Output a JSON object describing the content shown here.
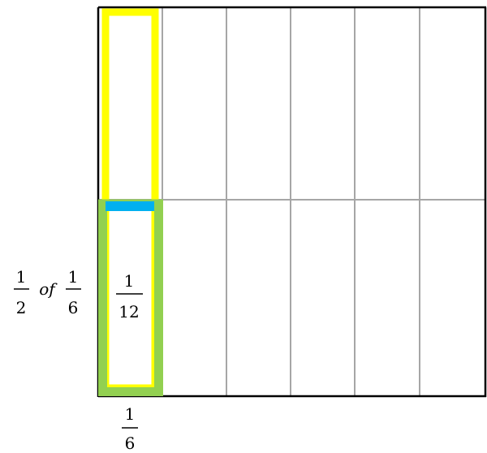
{
  "grid": {
    "columns": 6,
    "rows": 2
  },
  "colors": {
    "grid_line": "#a6a6a6",
    "border": "#000000",
    "column_outline": "#ffff00",
    "bottom_half_outline": "#92d050",
    "divider_bar": "#00b0f0"
  },
  "labels": {
    "left_expr": {
      "num1": "1",
      "den1": "2",
      "word": "of",
      "num2": "1",
      "den2": "6"
    },
    "inner_frac": {
      "num": "1",
      "den": "12"
    },
    "bottom_frac": {
      "num": "1",
      "den": "6"
    }
  }
}
